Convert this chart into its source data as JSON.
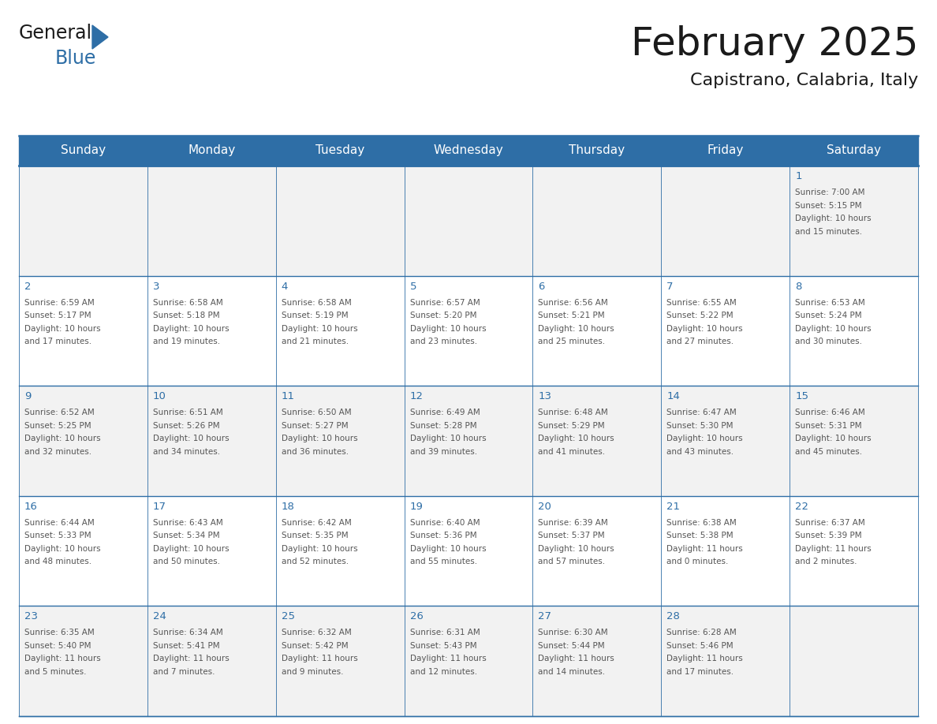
{
  "title": "February 2025",
  "subtitle": "Capistrano, Calabria, Italy",
  "header_bg": "#2E6EA6",
  "header_text": "#FFFFFF",
  "cell_bg_odd": "#F2F2F2",
  "cell_bg_even": "#FFFFFF",
  "text_color": "#555555",
  "day_num_color": "#2E6EA6",
  "border_color": "#2E6EA6",
  "title_color": "#1a1a1a",
  "day_names": [
    "Sunday",
    "Monday",
    "Tuesday",
    "Wednesday",
    "Thursday",
    "Friday",
    "Saturday"
  ],
  "days": [
    {
      "day": 1,
      "col": 6,
      "row": 0,
      "sunrise": "7:00 AM",
      "sunset": "5:15 PM",
      "daylight_h": "10 hours",
      "daylight_m": "and 15 minutes."
    },
    {
      "day": 2,
      "col": 0,
      "row": 1,
      "sunrise": "6:59 AM",
      "sunset": "5:17 PM",
      "daylight_h": "10 hours",
      "daylight_m": "and 17 minutes."
    },
    {
      "day": 3,
      "col": 1,
      "row": 1,
      "sunrise": "6:58 AM",
      "sunset": "5:18 PM",
      "daylight_h": "10 hours",
      "daylight_m": "and 19 minutes."
    },
    {
      "day": 4,
      "col": 2,
      "row": 1,
      "sunrise": "6:58 AM",
      "sunset": "5:19 PM",
      "daylight_h": "10 hours",
      "daylight_m": "and 21 minutes."
    },
    {
      "day": 5,
      "col": 3,
      "row": 1,
      "sunrise": "6:57 AM",
      "sunset": "5:20 PM",
      "daylight_h": "10 hours",
      "daylight_m": "and 23 minutes."
    },
    {
      "day": 6,
      "col": 4,
      "row": 1,
      "sunrise": "6:56 AM",
      "sunset": "5:21 PM",
      "daylight_h": "10 hours",
      "daylight_m": "and 25 minutes."
    },
    {
      "day": 7,
      "col": 5,
      "row": 1,
      "sunrise": "6:55 AM",
      "sunset": "5:22 PM",
      "daylight_h": "10 hours",
      "daylight_m": "and 27 minutes."
    },
    {
      "day": 8,
      "col": 6,
      "row": 1,
      "sunrise": "6:53 AM",
      "sunset": "5:24 PM",
      "daylight_h": "10 hours",
      "daylight_m": "and 30 minutes."
    },
    {
      "day": 9,
      "col": 0,
      "row": 2,
      "sunrise": "6:52 AM",
      "sunset": "5:25 PM",
      "daylight_h": "10 hours",
      "daylight_m": "and 32 minutes."
    },
    {
      "day": 10,
      "col": 1,
      "row": 2,
      "sunrise": "6:51 AM",
      "sunset": "5:26 PM",
      "daylight_h": "10 hours",
      "daylight_m": "and 34 minutes."
    },
    {
      "day": 11,
      "col": 2,
      "row": 2,
      "sunrise": "6:50 AM",
      "sunset": "5:27 PM",
      "daylight_h": "10 hours",
      "daylight_m": "and 36 minutes."
    },
    {
      "day": 12,
      "col": 3,
      "row": 2,
      "sunrise": "6:49 AM",
      "sunset": "5:28 PM",
      "daylight_h": "10 hours",
      "daylight_m": "and 39 minutes."
    },
    {
      "day": 13,
      "col": 4,
      "row": 2,
      "sunrise": "6:48 AM",
      "sunset": "5:29 PM",
      "daylight_h": "10 hours",
      "daylight_m": "and 41 minutes."
    },
    {
      "day": 14,
      "col": 5,
      "row": 2,
      "sunrise": "6:47 AM",
      "sunset": "5:30 PM",
      "daylight_h": "10 hours",
      "daylight_m": "and 43 minutes."
    },
    {
      "day": 15,
      "col": 6,
      "row": 2,
      "sunrise": "6:46 AM",
      "sunset": "5:31 PM",
      "daylight_h": "10 hours",
      "daylight_m": "and 45 minutes."
    },
    {
      "day": 16,
      "col": 0,
      "row": 3,
      "sunrise": "6:44 AM",
      "sunset": "5:33 PM",
      "daylight_h": "10 hours",
      "daylight_m": "and 48 minutes."
    },
    {
      "day": 17,
      "col": 1,
      "row": 3,
      "sunrise": "6:43 AM",
      "sunset": "5:34 PM",
      "daylight_h": "10 hours",
      "daylight_m": "and 50 minutes."
    },
    {
      "day": 18,
      "col": 2,
      "row": 3,
      "sunrise": "6:42 AM",
      "sunset": "5:35 PM",
      "daylight_h": "10 hours",
      "daylight_m": "and 52 minutes."
    },
    {
      "day": 19,
      "col": 3,
      "row": 3,
      "sunrise": "6:40 AM",
      "sunset": "5:36 PM",
      "daylight_h": "10 hours",
      "daylight_m": "and 55 minutes."
    },
    {
      "day": 20,
      "col": 4,
      "row": 3,
      "sunrise": "6:39 AM",
      "sunset": "5:37 PM",
      "daylight_h": "10 hours",
      "daylight_m": "and 57 minutes."
    },
    {
      "day": 21,
      "col": 5,
      "row": 3,
      "sunrise": "6:38 AM",
      "sunset": "5:38 PM",
      "daylight_h": "11 hours",
      "daylight_m": "and 0 minutes."
    },
    {
      "day": 22,
      "col": 6,
      "row": 3,
      "sunrise": "6:37 AM",
      "sunset": "5:39 PM",
      "daylight_h": "11 hours",
      "daylight_m": "and 2 minutes."
    },
    {
      "day": 23,
      "col": 0,
      "row": 4,
      "sunrise": "6:35 AM",
      "sunset": "5:40 PM",
      "daylight_h": "11 hours",
      "daylight_m": "and 5 minutes."
    },
    {
      "day": 24,
      "col": 1,
      "row": 4,
      "sunrise": "6:34 AM",
      "sunset": "5:41 PM",
      "daylight_h": "11 hours",
      "daylight_m": "and 7 minutes."
    },
    {
      "day": 25,
      "col": 2,
      "row": 4,
      "sunrise": "6:32 AM",
      "sunset": "5:42 PM",
      "daylight_h": "11 hours",
      "daylight_m": "and 9 minutes."
    },
    {
      "day": 26,
      "col": 3,
      "row": 4,
      "sunrise": "6:31 AM",
      "sunset": "5:43 PM",
      "daylight_h": "11 hours",
      "daylight_m": "and 12 minutes."
    },
    {
      "day": 27,
      "col": 4,
      "row": 4,
      "sunrise": "6:30 AM",
      "sunset": "5:44 PM",
      "daylight_h": "11 hours",
      "daylight_m": "and 14 minutes."
    },
    {
      "day": 28,
      "col": 5,
      "row": 4,
      "sunrise": "6:28 AM",
      "sunset": "5:46 PM",
      "daylight_h": "11 hours",
      "daylight_m": "and 17 minutes."
    }
  ],
  "num_rows": 5,
  "num_cols": 7,
  "logo_color1": "#1a1a1a",
  "logo_color2": "#2E6EA6"
}
